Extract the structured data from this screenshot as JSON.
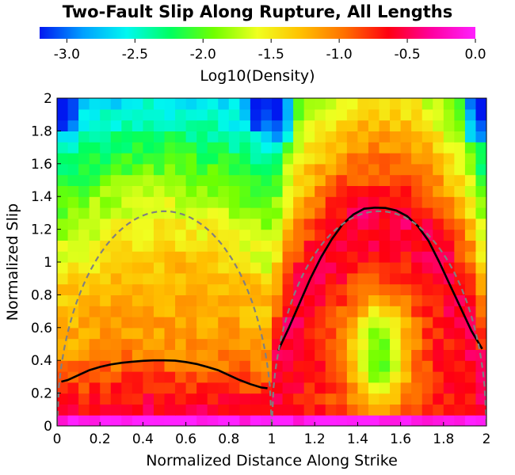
{
  "chart_data": {
    "type": "heatmap",
    "title": "Two-Fault Slip Along Rupture, All Lengths",
    "colorbar": {
      "label": "Log10(Density)",
      "range": [
        -3.2,
        0.0
      ],
      "ticks": [
        "-3.0",
        "-2.5",
        "-2.0",
        "-1.5",
        "-1.0",
        "-0.5",
        "0.0"
      ],
      "tick_values": [
        -3.0,
        -2.5,
        -2.0,
        -1.5,
        -1.0,
        -0.5,
        0.0
      ],
      "colors": [
        "#0018f0",
        "#00a0ff",
        "#00f8f0",
        "#00ff60",
        "#70ff00",
        "#f0ff20",
        "#ffc000",
        "#ff7000",
        "#ff0010",
        "#ff00a0",
        "#ff20ff"
      ]
    },
    "xlabel": "Normalized Distance Along Strike",
    "ylabel": "Normalized Slip",
    "xlim": [
      0,
      2
    ],
    "ylim": [
      0,
      2
    ],
    "x_ticks": [
      "0",
      "0.2",
      "0.4",
      "0.6",
      "0.8",
      "1",
      "1.2",
      "1.4",
      "1.6",
      "1.8",
      "2"
    ],
    "y_ticks": [
      "0",
      "0.2",
      "0.4",
      "0.6",
      "0.8",
      "1",
      "1.2",
      "1.4",
      "1.6",
      "1.8",
      "2"
    ],
    "grid": false,
    "series": [
      {
        "color": "#000000",
        "style": "solid",
        "x": [
          0.02,
          0.05,
          0.1,
          0.15,
          0.2,
          0.25,
          0.3,
          0.35,
          0.4,
          0.45,
          0.5,
          0.55,
          0.6,
          0.65,
          0.7,
          0.75,
          0.8,
          0.85,
          0.9,
          0.95,
          0.98
        ],
        "y": [
          0.27,
          0.28,
          0.31,
          0.34,
          0.36,
          0.375,
          0.385,
          0.392,
          0.397,
          0.4,
          0.4,
          0.398,
          0.39,
          0.378,
          0.36,
          0.34,
          0.31,
          0.28,
          0.255,
          0.235,
          0.23
        ]
      },
      {
        "color": "#000000",
        "style": "solid",
        "x": [
          1.03,
          1.08,
          1.13,
          1.18,
          1.23,
          1.28,
          1.33,
          1.38,
          1.43,
          1.48,
          1.53,
          1.58,
          1.63,
          1.68,
          1.73,
          1.78,
          1.83,
          1.88,
          1.93,
          1.98
        ],
        "y": [
          0.46,
          0.6,
          0.75,
          0.9,
          1.03,
          1.14,
          1.23,
          1.29,
          1.325,
          1.332,
          1.33,
          1.315,
          1.28,
          1.22,
          1.13,
          1.0,
          0.86,
          0.72,
          0.58,
          0.47
        ]
      },
      {
        "color": "#808080",
        "style": "dashed",
        "function": "1.31*sqrt(1-((x-0.5)/0.5)^2)",
        "domain": [
          0,
          1
        ]
      },
      {
        "color": "#808080",
        "style": "dashed",
        "function": "1.31*sqrt(1-((x-1.5)/0.5)^2)",
        "domain": [
          1,
          2
        ]
      }
    ]
  }
}
